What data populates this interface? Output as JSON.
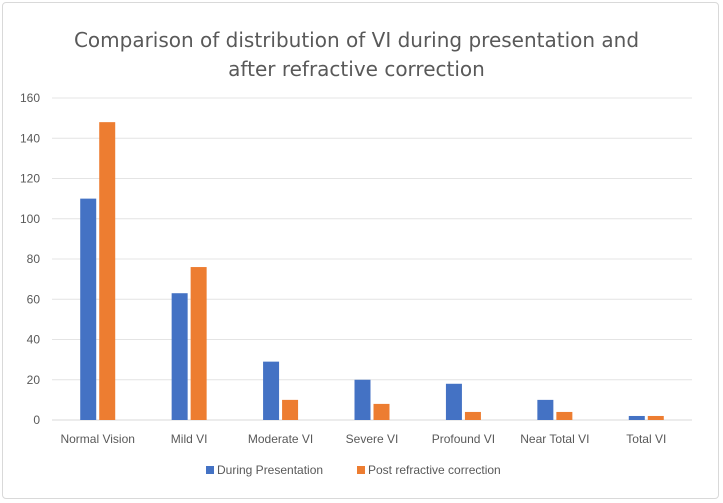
{
  "chart_data": {
    "type": "bar",
    "title_line1": "Comparison of distribution of VI  during presentation and",
    "title_line2": "after refractive correction",
    "categories": [
      "Normal Vision",
      "Mild VI",
      "Moderate VI",
      "Severe VI",
      "Profound VI",
      "Near Total VI",
      "Total VI"
    ],
    "series": [
      {
        "name": "During Presentation",
        "color": "#4472c4",
        "values": [
          110,
          63,
          29,
          20,
          18,
          10,
          2
        ]
      },
      {
        "name": "Post refractive correction",
        "color": "#ed7d31",
        "values": [
          148,
          76,
          10,
          8,
          4,
          4,
          2
        ]
      }
    ],
    "ylim": [
      0,
      160
    ],
    "yticks": [
      0,
      20,
      40,
      60,
      80,
      100,
      120,
      140,
      160
    ],
    "grid": true,
    "legend": "bottom"
  }
}
